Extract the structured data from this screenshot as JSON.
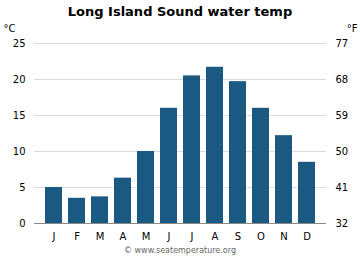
{
  "chart_data": {
    "type": "bar",
    "title": "Long Island Sound water temp",
    "categories": [
      "J",
      "F",
      "M",
      "A",
      "M",
      "J",
      "J",
      "A",
      "S",
      "O",
      "N",
      "D"
    ],
    "values": [
      5.0,
      3.5,
      3.7,
      6.3,
      10.0,
      16.0,
      20.5,
      21.7,
      19.7,
      16.0,
      12.2,
      8.5
    ],
    "color": "#1a5a82",
    "ylabel": "°C",
    "ylim": [
      0,
      25
    ],
    "yticks": [
      0,
      5,
      10,
      15,
      20,
      25
    ],
    "y2label": "°F",
    "y2lim": [
      32,
      77
    ],
    "y2ticks": [
      32,
      41,
      50,
      59,
      68,
      77
    ],
    "grid": true,
    "caption": "© www.seatemperature.org"
  }
}
